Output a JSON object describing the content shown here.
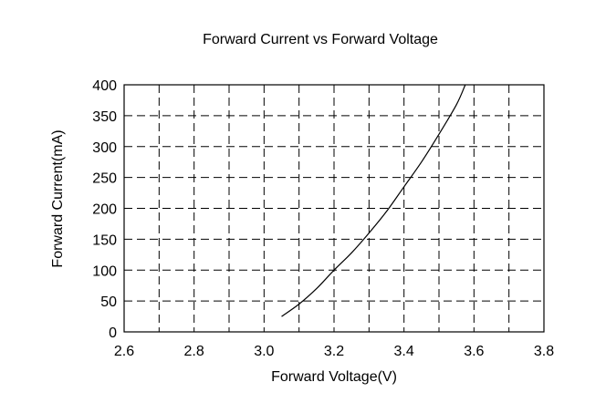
{
  "chart_data": {
    "type": "line",
    "title": "Forward Current vs Forward Voltage",
    "xlabel": "Forward Voltage(V)",
    "ylabel": "Forward Current(mA)",
    "xlim": [
      2.6,
      3.8
    ],
    "ylim": [
      0,
      400
    ],
    "xticks": [
      "2.6",
      "2.8",
      "3.0",
      "3.2",
      "3.4",
      "3.6",
      "3.8"
    ],
    "yticks": [
      "0",
      "50",
      "100",
      "150",
      "200",
      "250",
      "300",
      "350",
      "400"
    ],
    "grid": true,
    "grid_style": "dashed",
    "series": [
      {
        "color": "#000000",
        "x": [
          3.05,
          3.1,
          3.15,
          3.2,
          3.25,
          3.3,
          3.35,
          3.4,
          3.45,
          3.5,
          3.55,
          3.575
        ],
        "y": [
          25,
          45,
          70,
          100,
          128,
          160,
          195,
          235,
          275,
          320,
          368,
          400
        ]
      }
    ]
  }
}
